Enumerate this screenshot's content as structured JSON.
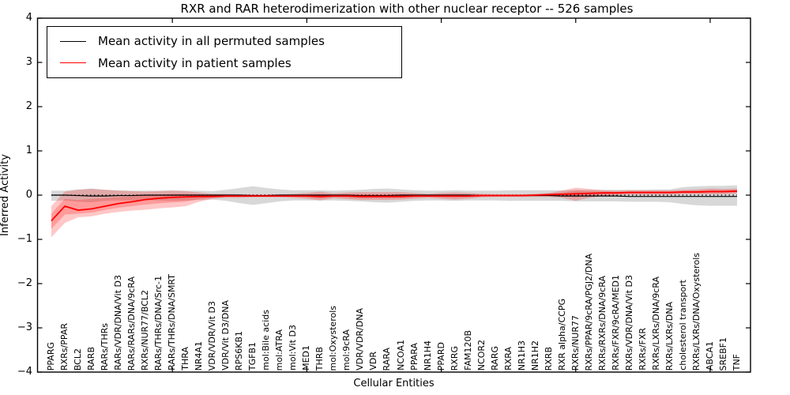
{
  "title": "RXR and RAR heterodimerization with other nuclear receptor -- 526 samples",
  "legend": {
    "items": [
      {
        "label": "Mean activity in all permuted samples",
        "color": "#000000"
      },
      {
        "label": "Mean activity in patient samples",
        "color": "#ff0000"
      }
    ]
  },
  "chart_data": {
    "type": "line",
    "title": "RXR and RAR heterodimerization with other nuclear receptor -- 526 samples",
    "xlabel": "Cellular Entities",
    "ylabel": "Inferred Activity",
    "ylim": [
      -4,
      4
    ],
    "ytick_values": [
      4,
      3,
      2,
      1,
      0,
      -1,
      -2,
      -3,
      -4
    ],
    "ytick_labels": [
      "4",
      "3",
      "2",
      "1",
      "0",
      "−1",
      "−2",
      "−3",
      "−4"
    ],
    "x_major_tick_positions": [
      10,
      20,
      30,
      40,
      50
    ],
    "grid": false,
    "legend_position": "upper left",
    "reference_line": {
      "y": 0,
      "style": "dotted",
      "color": "#000000"
    },
    "categories": [
      "PPARG",
      "RXRs/PPAR",
      "BCL2",
      "RARB",
      "RARs/THRs",
      "RARs/VDR/DNA/Vit D3",
      "RARs/RARs/DNA/9cRA",
      "RXRs/NUR77/BCL2",
      "RARs/THRs/DNA/Src-1",
      "RARs/THRs/DNA/SMRT",
      "THRA",
      "NR4A1",
      "VDR/VDR/Vit D3",
      "VDR/Vit D3/DNA",
      "RPS6KB1",
      "TGFB1",
      "mol:Bile acids",
      "mol:ATRA",
      "mol:Vit D3",
      "MED1",
      "THRB",
      "mol:Oxysterols",
      "mol:9cRA",
      "VDR/VDR/DNA",
      "VDR",
      "RARA",
      "NCOA1",
      "PPARA",
      "NR1H4",
      "PPARD",
      "RXRG",
      "FAM120B",
      "NCOR2",
      "RARG",
      "RXRA",
      "NR1H3",
      "NR1H2",
      "RXRB",
      "RXR alpha/CCPG",
      "RXRs/NUR77",
      "RXRs/PPAR/9cRA/PGJ2/DNA",
      "RXRs/RXRs/DNA/9cRA",
      "RXRs/FXR/9cRA/MED1",
      "RXRs/VDR/DNA/Vit D3",
      "RXRs/FXR",
      "RXRs/LXRs/DNA/9cRA",
      "RXRs/LXRs/DNA",
      "cholesterol transport",
      "RXRs/LXRs/DNA/Oxysterols",
      "ABCA1",
      "SREBF1",
      "TNF"
    ],
    "series": [
      {
        "name": "Mean activity in all permuted samples",
        "color": "#000000",
        "values": [
          0.0,
          0.0,
          -0.01,
          -0.02,
          -0.02,
          -0.01,
          -0.01,
          0.0,
          0.0,
          0.0,
          0.0,
          0.0,
          0.0,
          0.0,
          0.0,
          -0.01,
          -0.01,
          0.0,
          0.0,
          0.0,
          0.0,
          0.0,
          0.0,
          -0.01,
          -0.01,
          -0.01,
          0.0,
          0.0,
          0.0,
          0.0,
          0.0,
          0.0,
          -0.01,
          -0.01,
          -0.01,
          -0.01,
          -0.01,
          -0.01,
          -0.02,
          -0.02,
          -0.02,
          -0.02,
          -0.02,
          -0.03,
          -0.03,
          -0.03,
          -0.03,
          -0.03,
          -0.03,
          -0.03,
          -0.03,
          -0.03
        ]
      },
      {
        "name": "Mean activity in patient samples",
        "color": "#ff0000",
        "values": [
          -0.58,
          -0.25,
          -0.34,
          -0.31,
          -0.25,
          -0.19,
          -0.15,
          -0.1,
          -0.07,
          -0.05,
          -0.04,
          -0.03,
          -0.03,
          -0.02,
          -0.02,
          -0.02,
          -0.02,
          -0.02,
          -0.02,
          -0.02,
          -0.03,
          -0.02,
          -0.02,
          -0.03,
          -0.03,
          -0.03,
          -0.03,
          -0.02,
          -0.02,
          -0.02,
          -0.02,
          -0.02,
          -0.01,
          -0.01,
          -0.01,
          -0.01,
          0.0,
          0.01,
          0.02,
          0.03,
          0.04,
          0.05,
          0.05,
          0.06,
          0.06,
          0.06,
          0.06,
          0.07,
          0.07,
          0.08,
          0.08,
          0.09
        ]
      }
    ],
    "bands": [
      {
        "name": "permuted-samples-band",
        "color": "#9e9e9e",
        "opacity": 0.4,
        "low": [
          -0.13,
          -0.12,
          -0.15,
          -0.16,
          -0.13,
          -0.12,
          -0.12,
          -0.11,
          -0.12,
          -0.13,
          -0.12,
          -0.11,
          -0.1,
          -0.13,
          -0.18,
          -0.22,
          -0.18,
          -0.14,
          -0.12,
          -0.12,
          -0.12,
          -0.12,
          -0.13,
          -0.14,
          -0.16,
          -0.17,
          -0.15,
          -0.13,
          -0.12,
          -0.12,
          -0.13,
          -0.12,
          -0.12,
          -0.12,
          -0.13,
          -0.13,
          -0.13,
          -0.13,
          -0.13,
          -0.14,
          -0.14,
          -0.14,
          -0.14,
          -0.15,
          -0.15,
          -0.15,
          -0.16,
          -0.2,
          -0.23,
          -0.24,
          -0.24,
          -0.24
        ],
        "high": [
          0.1,
          0.1,
          0.13,
          0.15,
          0.12,
          0.11,
          0.1,
          0.1,
          0.1,
          0.11,
          0.1,
          0.1,
          0.09,
          0.12,
          0.16,
          0.2,
          0.16,
          0.13,
          0.11,
          0.11,
          0.11,
          0.1,
          0.11,
          0.12,
          0.14,
          0.15,
          0.13,
          0.11,
          0.1,
          0.1,
          0.11,
          0.1,
          0.1,
          0.1,
          0.11,
          0.11,
          0.11,
          0.11,
          0.11,
          0.12,
          0.12,
          0.12,
          0.12,
          0.12,
          0.12,
          0.13,
          0.13,
          0.18,
          0.2,
          0.21,
          0.21,
          0.22
        ]
      },
      {
        "name": "patient-samples-band",
        "color": "#ff0000",
        "opacity": 0.22,
        "low": [
          -0.95,
          -0.63,
          -0.5,
          -0.48,
          -0.42,
          -0.38,
          -0.35,
          -0.33,
          -0.3,
          -0.28,
          -0.25,
          -0.15,
          -0.08,
          -0.06,
          -0.06,
          -0.05,
          -0.05,
          -0.05,
          -0.06,
          -0.08,
          -0.12,
          -0.07,
          -0.09,
          -0.11,
          -0.11,
          -0.11,
          -0.1,
          -0.08,
          -0.06,
          -0.08,
          -0.1,
          -0.08,
          -0.05,
          -0.04,
          -0.04,
          -0.04,
          -0.04,
          -0.04,
          -0.06,
          -0.13,
          -0.06,
          -0.02,
          0.0,
          0.01,
          0.01,
          0.01,
          0.01,
          0.02,
          0.02,
          0.02,
          0.02,
          0.03
        ],
        "high": [
          -0.25,
          0.08,
          0.12,
          0.14,
          0.12,
          0.1,
          0.09,
          0.08,
          0.09,
          0.1,
          0.09,
          0.06,
          0.03,
          0.03,
          0.02,
          0.02,
          0.02,
          0.02,
          0.03,
          0.05,
          0.08,
          0.04,
          0.06,
          0.07,
          0.07,
          0.07,
          0.07,
          0.05,
          0.03,
          0.05,
          0.06,
          0.05,
          0.03,
          0.02,
          0.02,
          0.02,
          0.03,
          0.05,
          0.1,
          0.17,
          0.14,
          0.11,
          0.1,
          0.11,
          0.11,
          0.11,
          0.11,
          0.12,
          0.13,
          0.15,
          0.14,
          0.15
        ]
      }
    ]
  }
}
